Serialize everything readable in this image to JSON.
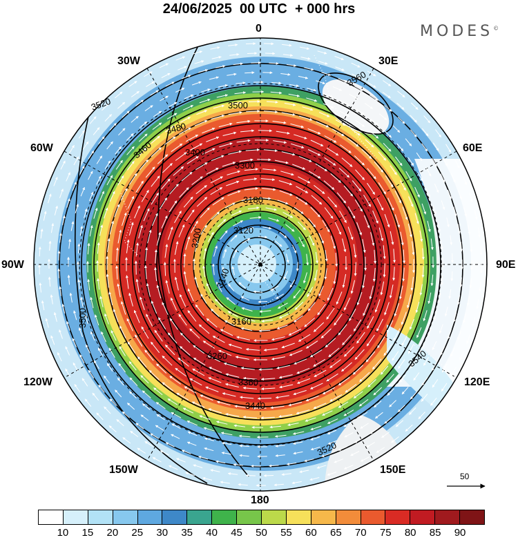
{
  "title": "24/06/2025  00 UTC  + 000 hrs",
  "brand": "MODES",
  "brand_mark": "©",
  "longitude_labels": {
    "lon_0": "0",
    "lon_30e": "30E",
    "lon_60e": "60E",
    "lon_90e": "90E",
    "lon_120e": "120E",
    "lon_150e": "150E",
    "lon_180": "180",
    "lon_150w": "150W",
    "lon_120w": "120W",
    "lon_90w": "90W",
    "lon_60w": "60W",
    "lon_30w": "30W"
  },
  "reference_vector": {
    "label": "50"
  },
  "contour_labels": [
    "3560",
    "3520",
    "3500",
    "3480",
    "3460",
    "3400",
    "3300",
    "3180",
    "3120",
    "3140",
    "3160",
    "3200",
    "3260",
    "3360",
    "3440",
    "3540",
    "3520",
    "3500"
  ],
  "colorbar": {
    "colors": [
      "#ffffff",
      "#d6f0fb",
      "#b2e2f6",
      "#87c8ee",
      "#5ea8e0",
      "#3e88c8",
      "#3aa58f",
      "#3fb34b",
      "#77c64a",
      "#bcd94a",
      "#f6e05a",
      "#f6b84a",
      "#f28c3a",
      "#ea5a2e",
      "#d92b24",
      "#c11b22",
      "#a01a1e",
      "#7f1416"
    ],
    "tick_labels": [
      "10",
      "15",
      "20",
      "25",
      "30",
      "35",
      "40",
      "45",
      "50",
      "55",
      "60",
      "65",
      "70",
      "75",
      "80",
      "85",
      "90"
    ]
  }
}
